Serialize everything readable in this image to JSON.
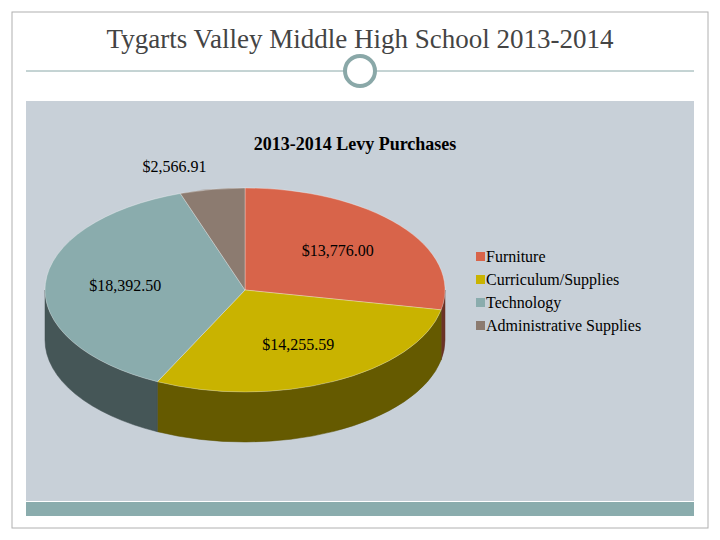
{
  "header": {
    "title": "Tygarts Valley Middle High School 2013-2014"
  },
  "chart_data": {
    "type": "pie",
    "title": "2013-2014 Levy Purchases",
    "categories": [
      "Furniture",
      "Curriculum/Supplies",
      "Technology",
      "Administrative Supplies"
    ],
    "values": [
      13776.0,
      14255.59,
      18392.5,
      2566.91
    ],
    "value_labels": [
      "$13,776.00",
      "$14,255.59",
      "$18,392.50",
      "$2,566.91"
    ],
    "colors": [
      "#d8644a",
      "#c9b300",
      "#8aacad",
      "#8c7b70"
    ],
    "data_labels": true,
    "legend": "right"
  }
}
